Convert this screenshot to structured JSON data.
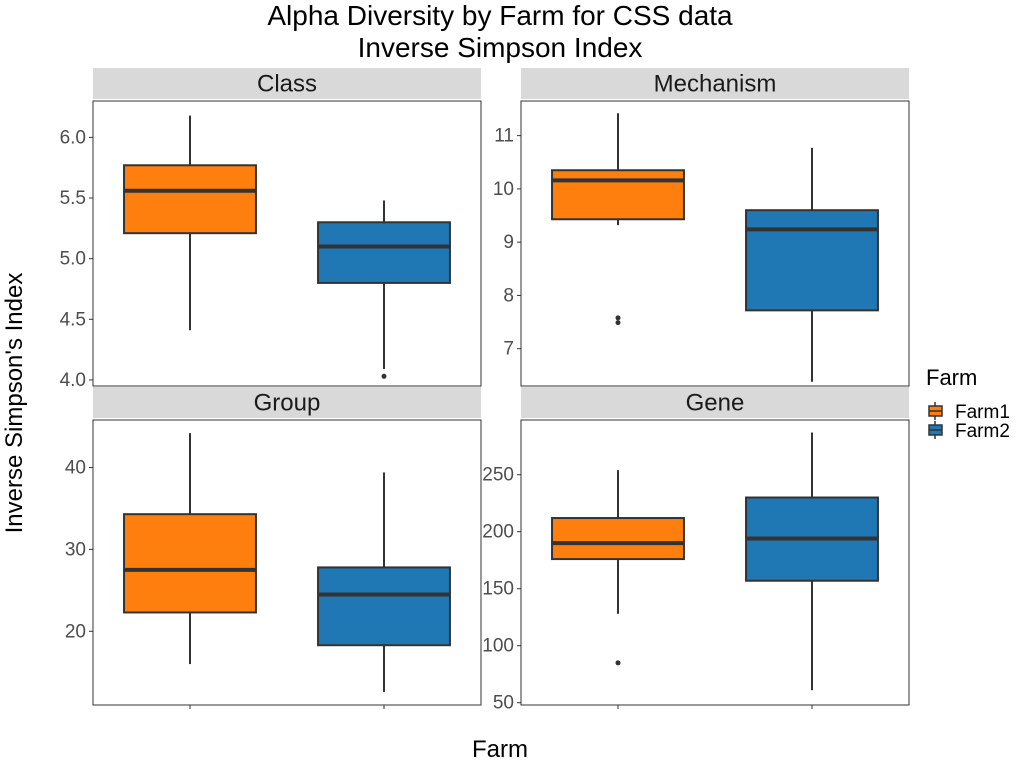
{
  "title_line1": "Alpha Diversity by Farm for CSS data",
  "title_line2": "Inverse Simpson Index",
  "xlabel": "Farm",
  "ylabel": "Inverse Simpson's Index",
  "legend": {
    "title": "Farm",
    "placement": "right",
    "entries": [
      {
        "label": "Farm1",
        "color": "#ff7f0e"
      },
      {
        "label": "Farm2",
        "color": "#1f77b4"
      }
    ]
  },
  "colors": {
    "Farm1": "#ff7f0e",
    "Farm2": "#1f77b4",
    "strip": "#d9d9d9",
    "line": "#333333"
  },
  "chart_data": [
    {
      "type": "box",
      "facet": "Class",
      "categories": [
        "Farm1",
        "Farm2"
      ],
      "ylim": [
        3.95,
        6.3
      ],
      "yticks": [
        4.0,
        4.5,
        5.0,
        5.5,
        6.0
      ],
      "ytick_labels": [
        "4.0",
        "4.5",
        "5.0",
        "5.5",
        "6.0"
      ],
      "boxes": [
        {
          "group": "Farm1",
          "whisker_low": 4.41,
          "q1": 5.21,
          "median": 5.56,
          "q3": 5.77,
          "whisker_high": 6.18,
          "outliers": []
        },
        {
          "group": "Farm2",
          "whisker_low": 4.09,
          "q1": 4.8,
          "median": 5.1,
          "q3": 5.3,
          "whisker_high": 5.48,
          "outliers": [
            4.03
          ]
        }
      ]
    },
    {
      "type": "box",
      "facet": "Mechanism",
      "categories": [
        "Farm1",
        "Farm2"
      ],
      "ylim": [
        6.3,
        11.65
      ],
      "yticks": [
        7,
        8,
        9,
        10,
        11
      ],
      "ytick_labels": [
        "7",
        "8",
        "9",
        "10",
        "11"
      ],
      "boxes": [
        {
          "group": "Farm1",
          "whisker_low": 9.32,
          "q1": 9.43,
          "median": 10.16,
          "q3": 10.35,
          "whisker_high": 11.42,
          "outliers": [
            7.58,
            7.49
          ]
        },
        {
          "group": "Farm2",
          "whisker_low": 6.38,
          "q1": 7.72,
          "median": 9.24,
          "q3": 9.6,
          "whisker_high": 10.77,
          "outliers": []
        }
      ]
    },
    {
      "type": "box",
      "facet": "Group",
      "categories": [
        "Farm1",
        "Farm2"
      ],
      "ylim": [
        11,
        45.8
      ],
      "yticks": [
        20,
        30,
        40
      ],
      "ytick_labels": [
        "20",
        "30",
        "40"
      ],
      "boxes": [
        {
          "group": "Farm1",
          "whisker_low": 16.0,
          "q1": 22.3,
          "median": 27.5,
          "q3": 34.3,
          "whisker_high": 44.2,
          "outliers": []
        },
        {
          "group": "Farm2",
          "whisker_low": 12.6,
          "q1": 18.3,
          "median": 24.5,
          "q3": 27.8,
          "whisker_high": 39.4,
          "outliers": []
        }
      ]
    },
    {
      "type": "box",
      "facet": "Gene",
      "categories": [
        "Farm1",
        "Farm2"
      ],
      "ylim": [
        48,
        298
      ],
      "yticks": [
        50,
        100,
        150,
        200,
        250
      ],
      "ytick_labels": [
        "50",
        "100",
        "150",
        "200",
        "250"
      ],
      "boxes": [
        {
          "group": "Farm1",
          "whisker_low": 128,
          "q1": 176,
          "median": 190,
          "q3": 212,
          "whisker_high": 254,
          "outliers": [
            85
          ]
        },
        {
          "group": "Farm2",
          "whisker_low": 61,
          "q1": 157,
          "median": 194,
          "q3": 230,
          "whisker_high": 287,
          "outliers": []
        }
      ]
    }
  ]
}
